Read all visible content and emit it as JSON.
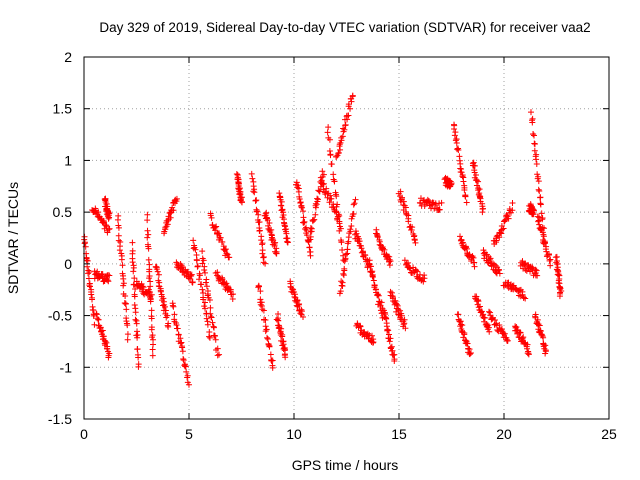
{
  "chart_data": {
    "type": "scatter",
    "title": "Day 329 of 2019, Sidereal Day-to-day VTEC variation (SDTVAR) for receiver vaa2",
    "xlabel": "GPS time / hours",
    "ylabel": "SDTVAR / TECUs",
    "xlim": [
      0,
      25
    ],
    "ylim": [
      -1.5,
      2
    ],
    "xticks": [
      0,
      5,
      10,
      15,
      20,
      25
    ],
    "yticks": [
      -1.5,
      -1,
      -0.5,
      0,
      0.5,
      1,
      1.5,
      2
    ],
    "xtick_labels": [
      "0",
      "5",
      "10",
      "15",
      "20",
      "25"
    ],
    "ytick_labels": [
      "-1.5",
      "-1",
      "-0.5",
      "0",
      "0.5",
      "1",
      "1.5",
      "2"
    ],
    "grid": true,
    "marker": "+",
    "series": [
      {
        "name": "vaa2",
        "color": "#ff0000",
        "approximate": true,
        "segments": [
          {
            "x": [
              0.0,
              0.5
            ],
            "y": [
              0.25,
              -0.55
            ]
          },
          {
            "x": [
              0.4,
              1.2
            ],
            "y": [
              0.55,
              0.3
            ]
          },
          {
            "x": [
              0.5,
              1.2
            ],
            "y": [
              -0.1,
              -0.15
            ]
          },
          {
            "x": [
              0.6,
              1.2
            ],
            "y": [
              -0.5,
              -0.9
            ]
          },
          {
            "x": [
              1.0,
              1.2
            ],
            "y": [
              0.6,
              0.45
            ]
          },
          {
            "x": [
              1.6,
              2.1
            ],
            "y": [
              0.45,
              -0.7
            ]
          },
          {
            "x": [
              2.3,
              2.6
            ],
            "y": [
              0.2,
              -1.0
            ]
          },
          {
            "x": [
              2.5,
              3.2
            ],
            "y": [
              -0.2,
              -0.3
            ]
          },
          {
            "x": [
              3.0,
              3.3
            ],
            "y": [
              0.45,
              -0.9
            ]
          },
          {
            "x": [
              3.4,
              4.0
            ],
            "y": [
              0.0,
              -0.6
            ]
          },
          {
            "x": [
              3.8,
              4.4
            ],
            "y": [
              0.3,
              0.65
            ]
          },
          {
            "x": [
              4.2,
              5.0
            ],
            "y": [
              -0.4,
              -1.15
            ]
          },
          {
            "x": [
              4.4,
              5.2
            ],
            "y": [
              0.0,
              -0.15
            ]
          },
          {
            "x": [
              5.2,
              6.0
            ],
            "y": [
              0.25,
              -0.7
            ]
          },
          {
            "x": [
              5.6,
              6.4
            ],
            "y": [
              0.1,
              -0.9
            ]
          },
          {
            "x": [
              6.0,
              6.9
            ],
            "y": [
              0.45,
              0.05
            ]
          },
          {
            "x": [
              6.3,
              7.1
            ],
            "y": [
              -0.1,
              -0.3
            ]
          },
          {
            "x": [
              7.3,
              7.5
            ],
            "y": [
              0.85,
              0.6
            ]
          },
          {
            "x": [
              8.0,
              8.6
            ],
            "y": [
              0.85,
              0.0
            ]
          },
          {
            "x": [
              8.3,
              9.0
            ],
            "y": [
              -0.2,
              -1.0
            ]
          },
          {
            "x": [
              8.6,
              9.2
            ],
            "y": [
              0.5,
              0.1
            ]
          },
          {
            "x": [
              9.2,
              9.6
            ],
            "y": [
              -0.5,
              -0.9
            ]
          },
          {
            "x": [
              9.3,
              9.7
            ],
            "y": [
              0.7,
              0.2
            ]
          },
          {
            "x": [
              9.8,
              10.4
            ],
            "y": [
              -0.2,
              -0.5
            ]
          },
          {
            "x": [
              10.1,
              10.8
            ],
            "y": [
              0.8,
              0.1
            ]
          },
          {
            "x": [
              10.7,
              11.4
            ],
            "y": [
              0.2,
              0.9
            ]
          },
          {
            "x": [
              11.3,
              12.2
            ],
            "y": [
              0.8,
              0.4
            ]
          },
          {
            "x": [
              11.6,
              12.4
            ],
            "y": [
              1.3,
              0.0
            ]
          },
          {
            "x": [
              12.0,
              12.8
            ],
            "y": [
              1.0,
              1.65
            ]
          },
          {
            "x": [
              12.2,
              12.9
            ],
            "y": [
              -0.3,
              0.6
            ]
          },
          {
            "x": [
              12.9,
              13.6
            ],
            "y": [
              0.3,
              -0.05
            ]
          },
          {
            "x": [
              13.0,
              13.8
            ],
            "y": [
              -0.6,
              -0.75
            ]
          },
          {
            "x": [
              13.6,
              14.2
            ],
            "y": [
              0.0,
              -0.5
            ]
          },
          {
            "x": [
              13.9,
              14.6
            ],
            "y": [
              0.3,
              0.0
            ]
          },
          {
            "x": [
              14.2,
              14.8
            ],
            "y": [
              -0.4,
              -0.95
            ]
          },
          {
            "x": [
              14.6,
              15.3
            ],
            "y": [
              -0.3,
              -0.6
            ]
          },
          {
            "x": [
              15.0,
              15.8
            ],
            "y": [
              0.7,
              0.2
            ]
          },
          {
            "x": [
              15.3,
              16.2
            ],
            "y": [
              0.0,
              -0.15
            ]
          },
          {
            "x": [
              16.0,
              17.0
            ],
            "y": [
              0.6,
              0.55
            ]
          },
          {
            "x": [
              17.2,
              17.5
            ],
            "y": [
              0.8,
              0.75
            ]
          },
          {
            "x": [
              17.6,
              18.2
            ],
            "y": [
              1.35,
              0.6
            ]
          },
          {
            "x": [
              17.9,
              18.6
            ],
            "y": [
              0.25,
              0.0
            ]
          },
          {
            "x": [
              17.8,
              18.4
            ],
            "y": [
              -0.5,
              -0.9
            ]
          },
          {
            "x": [
              18.5,
              19.0
            ],
            "y": [
              1.0,
              0.5
            ]
          },
          {
            "x": [
              18.6,
              19.3
            ],
            "y": [
              -0.3,
              -0.65
            ]
          },
          {
            "x": [
              19.0,
              19.8
            ],
            "y": [
              0.1,
              -0.1
            ]
          },
          {
            "x": [
              19.3,
              20.2
            ],
            "y": [
              -0.5,
              -0.75
            ]
          },
          {
            "x": [
              19.5,
              20.4
            ],
            "y": [
              0.2,
              0.55
            ]
          },
          {
            "x": [
              20.0,
              21.0
            ],
            "y": [
              -0.2,
              -0.3
            ]
          },
          {
            "x": [
              20.5,
              21.2
            ],
            "y": [
              -0.6,
              -0.85
            ]
          },
          {
            "x": [
              20.8,
              21.6
            ],
            "y": [
              0.0,
              -0.1
            ]
          },
          {
            "x": [
              21.2,
              21.4
            ],
            "y": [
              0.55,
              0.5
            ]
          },
          {
            "x": [
              21.3,
              21.9
            ],
            "y": [
              1.45,
              0.3
            ]
          },
          {
            "x": [
              21.5,
              22.0
            ],
            "y": [
              -0.5,
              -0.85
            ]
          },
          {
            "x": [
              21.6,
              22.2
            ],
            "y": [
              0.45,
              0.0
            ]
          },
          {
            "x": [
              22.5,
              22.7
            ],
            "y": [
              0.05,
              -0.3
            ]
          }
        ]
      }
    ]
  }
}
